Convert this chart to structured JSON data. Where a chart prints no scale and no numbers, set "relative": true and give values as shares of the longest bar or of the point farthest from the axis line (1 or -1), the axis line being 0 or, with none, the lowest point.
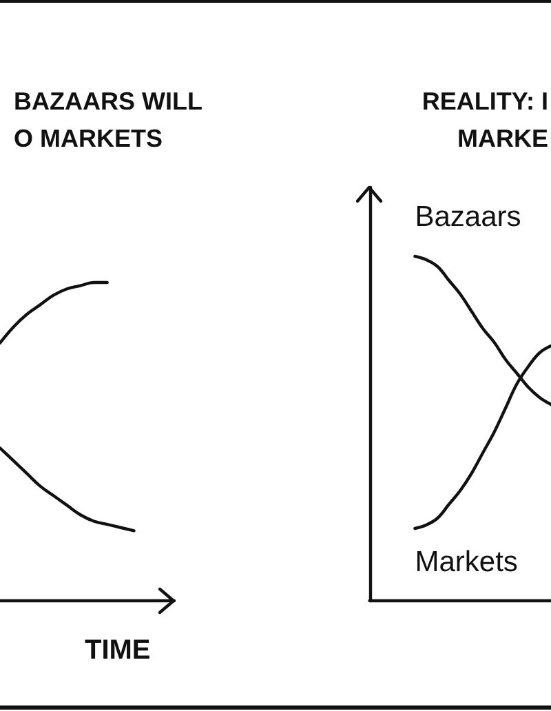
{
  "chart_data": [
    {
      "type": "line",
      "title": "BAZAARS WILL\nO MARKETS",
      "xlabel": "TIME",
      "relative": true,
      "marker": "none",
      "line_style": "solid",
      "categories": [
        null,
        null,
        null,
        null,
        null,
        null,
        null,
        null,
        null,
        null,
        null,
        null,
        null,
        null,
        null
      ],
      "series": [
        {
          "color": "#111111",
          "values": [
            null,
            0.81,
            0.86,
            0.9,
            0.93,
            0.96,
            0.98,
            0.99,
            1,
            1,
            null,
            null,
            null,
            null,
            null
          ]
        },
        {
          "color": "#111111",
          "values": [
            null,
            0.48,
            0.44,
            0.4,
            0.36,
            0.33,
            0.3,
            0.27,
            0.25,
            0.24,
            0.23,
            0.22,
            null,
            null,
            null
          ]
        }
      ]
    },
    {
      "type": "line",
      "title": "REALITY: I\nMARKE",
      "relative": true,
      "marker": "none",
      "line_style": "solid",
      "categories": [
        null,
        null,
        null,
        null,
        null,
        null,
        null,
        null,
        null,
        null,
        null,
        null,
        null,
        null,
        null,
        null,
        null,
        null,
        null,
        null
      ],
      "series": [
        {
          "name": "Bazaars",
          "color": "#111111",
          "values": [
            null,
            null,
            null,
            null,
            1,
            0.99,
            0.97,
            0.93,
            0.89,
            0.84,
            0.79,
            0.75,
            0.7,
            0.66,
            0.62,
            0.59,
            0.57,
            null,
            null,
            null
          ]
        },
        {
          "name": "Markets",
          "color": "#111111",
          "values": [
            null,
            null,
            null,
            null,
            0.21,
            0.22,
            0.24,
            0.28,
            0.32,
            0.37,
            0.43,
            0.49,
            0.56,
            0.63,
            0.68,
            0.72,
            0.74,
            null,
            null,
            null
          ]
        }
      ]
    }
  ]
}
